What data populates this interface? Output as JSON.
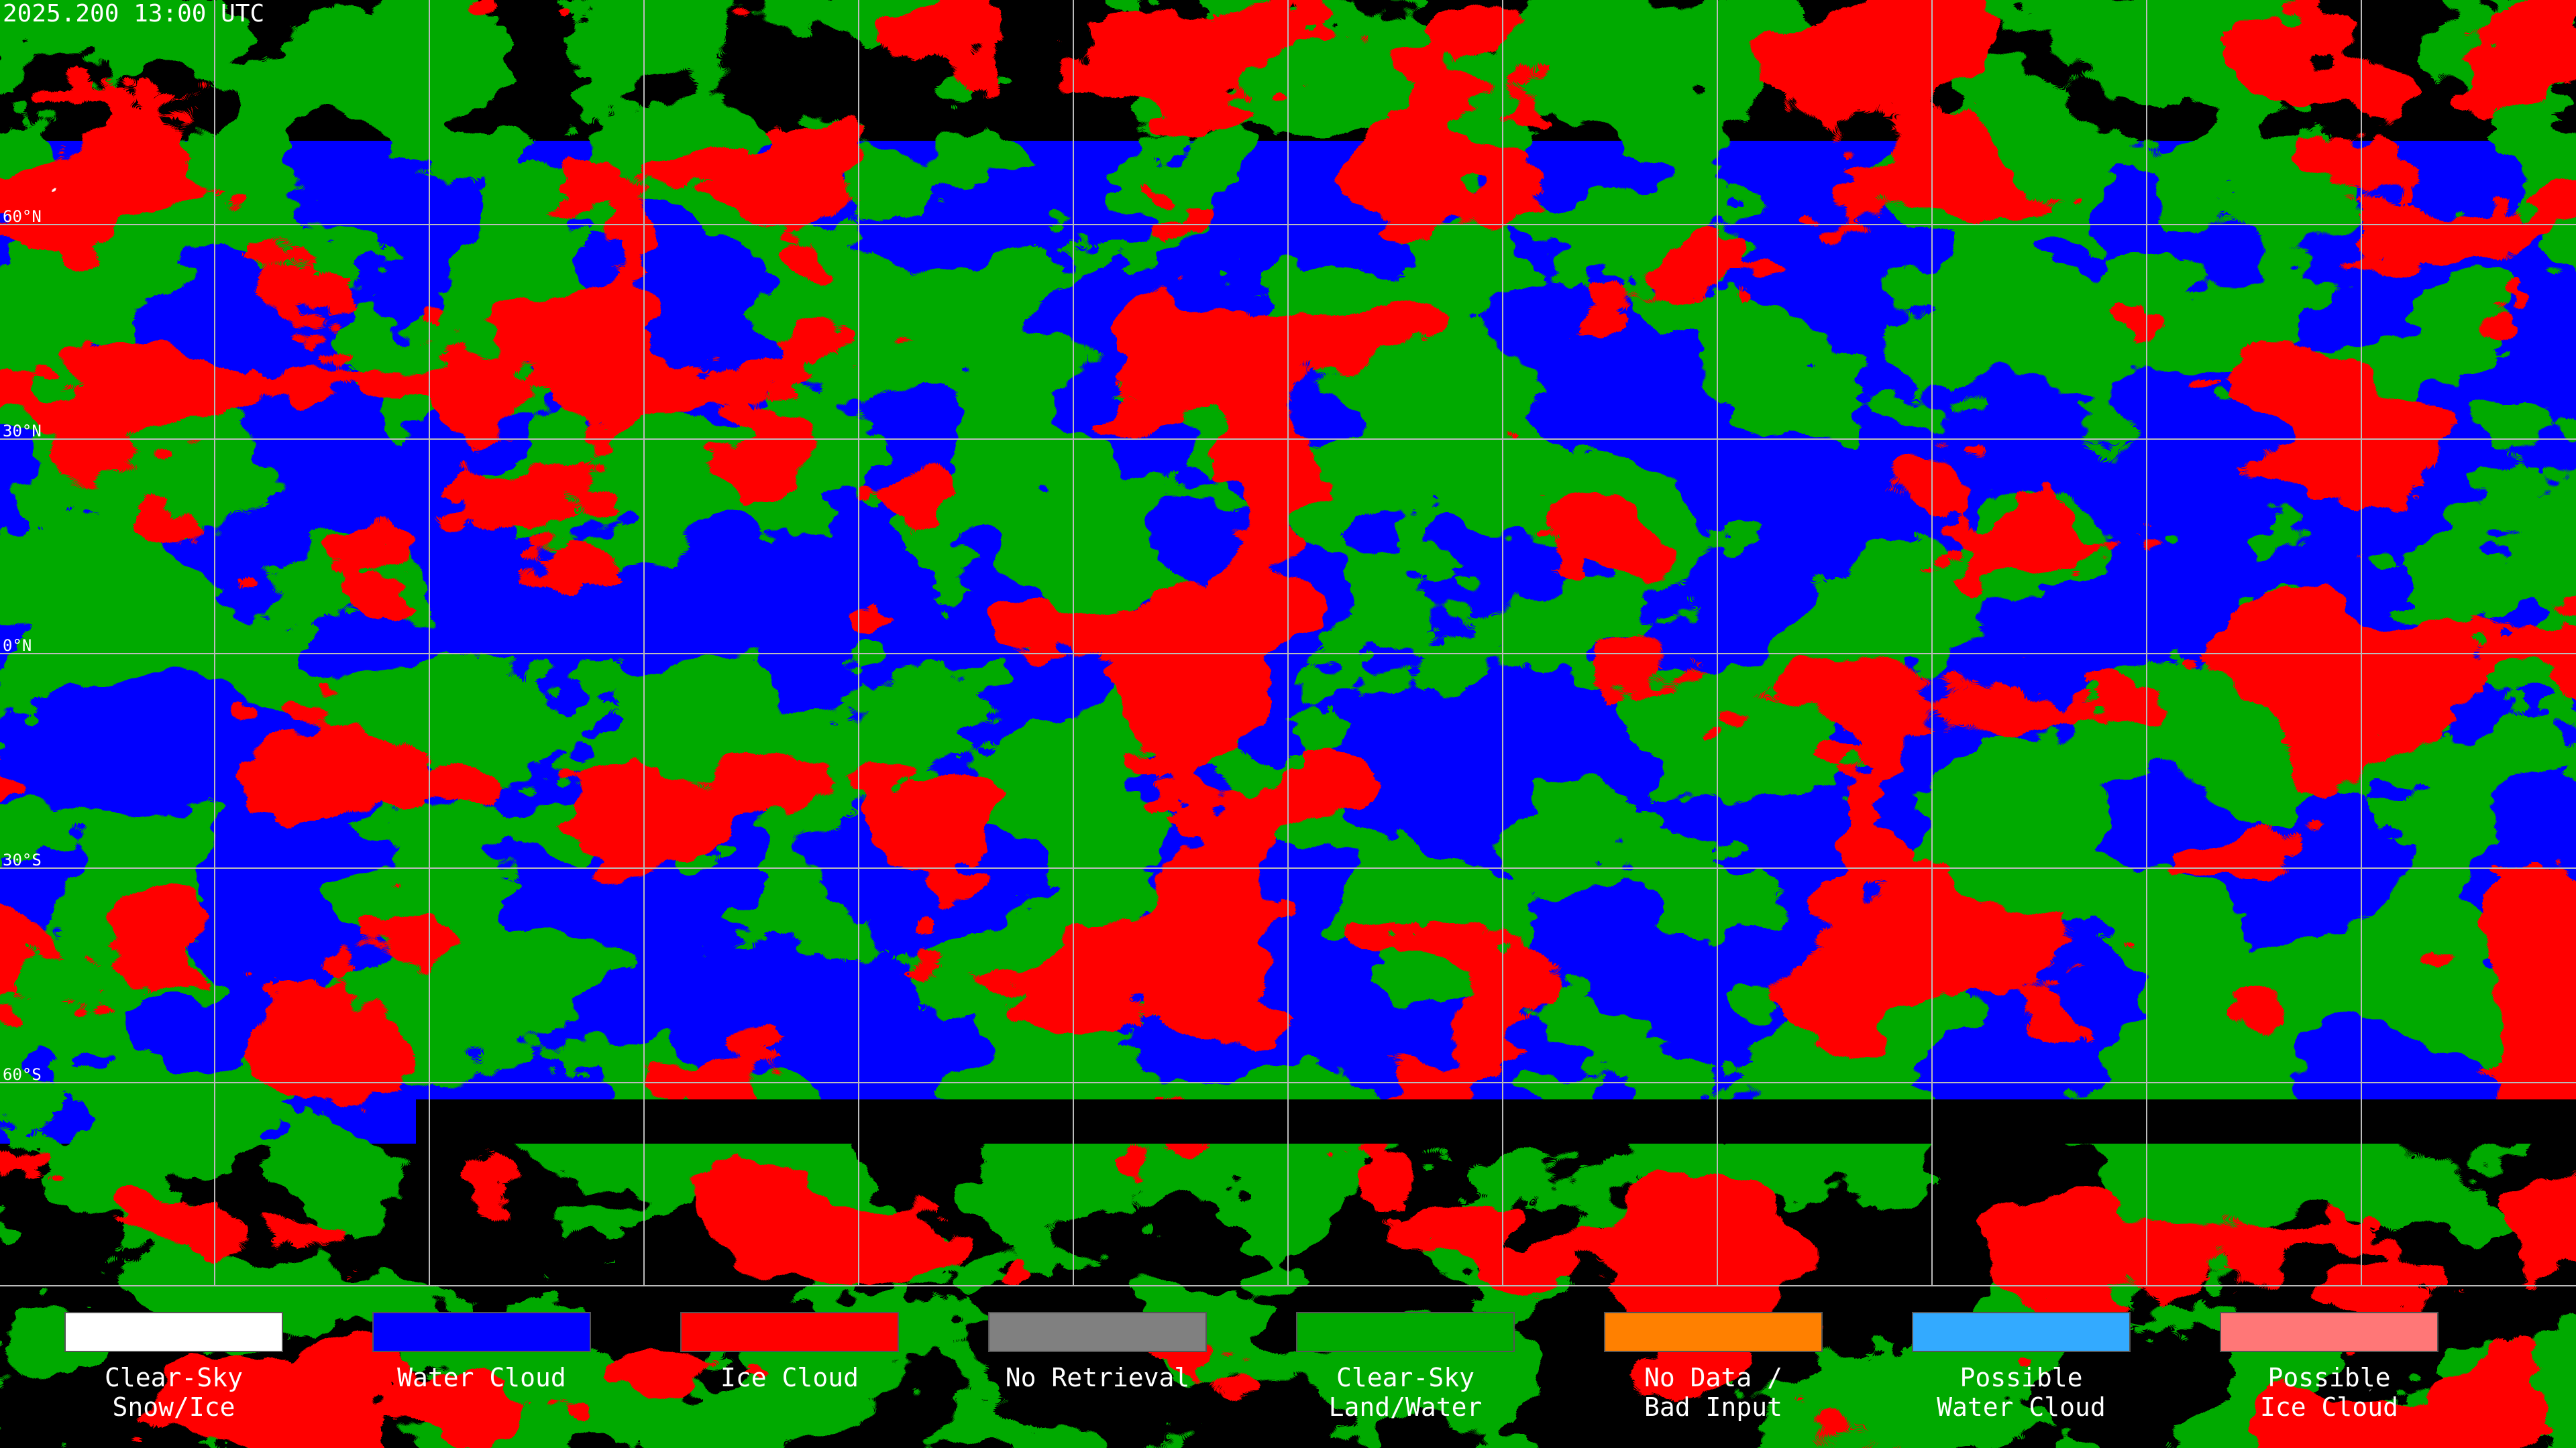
{
  "header": {
    "timestamp": "2025.200 13:00 UTC"
  },
  "map": {
    "latitude_labels": [
      "60°N",
      "30°N",
      "0°N",
      "30°S",
      "60°S"
    ]
  },
  "legend": {
    "items": [
      {
        "label_lines": [
          "Clear-Sky",
          "Snow/Ice"
        ],
        "color": "#ffffff"
      },
      {
        "label_lines": [
          "Water Cloud"
        ],
        "color": "#0000ff"
      },
      {
        "label_lines": [
          "Ice Cloud"
        ],
        "color": "#ff0000"
      },
      {
        "label_lines": [
          "No Retrieval"
        ],
        "color": "#808080"
      },
      {
        "label_lines": [
          "Clear-Sky",
          "Land/Water"
        ],
        "color": "#00aa00"
      },
      {
        "label_lines": [
          "No Data /",
          "Bad Input"
        ],
        "color": "#ff8000"
      },
      {
        "label_lines": [
          "Possible",
          "Water Cloud"
        ],
        "color": "#33aaff"
      },
      {
        "label_lines": [
          "Possible",
          "Ice Cloud"
        ],
        "color": "#ff7777"
      }
    ]
  }
}
